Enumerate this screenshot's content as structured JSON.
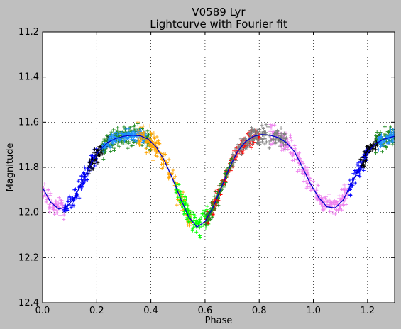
{
  "chart_data": {
    "type": "scatter",
    "title": "V0589 Lyr",
    "subtitle": "Lightcurve with Fourier fit",
    "xlabel": "Phase",
    "ylabel": "Magnitude",
    "xlim": [
      0.0,
      1.3
    ],
    "ylim": [
      12.4,
      11.2
    ],
    "y_inverted": true,
    "grid": true,
    "xticks": [
      "0.0",
      "0.2",
      "0.4",
      "0.6",
      "0.8",
      "1.0",
      "1.2"
    ],
    "yticks": [
      "11.2",
      "11.4",
      "11.6",
      "11.8",
      "12.0",
      "12.2",
      "12.4"
    ],
    "marker": "plus",
    "fit": {
      "name": "Fourier fit",
      "color": "#0000cc",
      "points": [
        [
          0.0,
          11.89
        ],
        [
          0.03,
          11.955
        ],
        [
          0.06,
          11.985
        ],
        [
          0.09,
          11.975
        ],
        [
          0.12,
          11.93
        ],
        [
          0.15,
          11.855
        ],
        [
          0.18,
          11.78
        ],
        [
          0.21,
          11.725
        ],
        [
          0.24,
          11.69
        ],
        [
          0.27,
          11.672
        ],
        [
          0.3,
          11.662
        ],
        [
          0.33,
          11.658
        ],
        [
          0.36,
          11.66
        ],
        [
          0.39,
          11.675
        ],
        [
          0.42,
          11.71
        ],
        [
          0.45,
          11.77
        ],
        [
          0.48,
          11.85
        ],
        [
          0.51,
          11.94
        ],
        [
          0.54,
          12.02
        ],
        [
          0.57,
          12.065
        ],
        [
          0.6,
          12.04
        ],
        [
          0.63,
          11.975
        ],
        [
          0.66,
          11.89
        ],
        [
          0.69,
          11.8
        ],
        [
          0.72,
          11.73
        ],
        [
          0.75,
          11.685
        ],
        [
          0.78,
          11.662
        ],
        [
          0.81,
          11.655
        ],
        [
          0.84,
          11.658
        ],
        [
          0.87,
          11.668
        ],
        [
          0.9,
          11.69
        ],
        [
          0.93,
          11.73
        ],
        [
          0.96,
          11.8
        ],
        [
          0.99,
          11.875
        ],
        [
          1.02,
          11.935
        ],
        [
          1.05,
          11.975
        ],
        [
          1.08,
          11.98
        ],
        [
          1.11,
          11.945
        ],
        [
          1.14,
          11.875
        ],
        [
          1.17,
          11.8
        ],
        [
          1.2,
          11.735
        ],
        [
          1.23,
          11.695
        ],
        [
          1.26,
          11.675
        ],
        [
          1.3,
          11.662
        ]
      ]
    },
    "observation_groups": [
      {
        "color": "#ee82ee",
        "segments": [
          [
            0.0,
            0.08
          ],
          [
            0.84,
            1.13
          ]
        ],
        "scatter": 0.045
      },
      {
        "color": "#0000ff",
        "segments": [
          [
            0.08,
            0.2
          ],
          [
            1.13,
            1.2
          ]
        ],
        "scatter": 0.04
      },
      {
        "color": "#000000",
        "segments": [
          [
            0.17,
            0.25
          ],
          [
            1.17,
            1.25
          ]
        ],
        "scatter": 0.035
      },
      {
        "color": "#228b22",
        "segments": [
          [
            0.22,
            0.4
          ],
          [
            1.23,
            1.3
          ]
        ],
        "scatter": 0.045
      },
      {
        "color": "#1e90ff",
        "segments": [
          [
            0.22,
            0.38
          ],
          [
            1.24,
            1.3
          ]
        ],
        "scatter": 0.03
      },
      {
        "color": "#ffa500",
        "segments": [
          [
            0.35,
            0.55
          ]
        ],
        "scatter": 0.05
      },
      {
        "color": "#00ff00",
        "segments": [
          [
            0.49,
            0.63
          ]
        ],
        "scatter": 0.045
      },
      {
        "color": "#ff0000",
        "segments": [
          [
            0.6,
            0.8
          ]
        ],
        "scatter": 0.035
      },
      {
        "color": "#228b22",
        "segments": [
          [
            0.6,
            0.7
          ]
        ],
        "scatter": 0.035
      },
      {
        "color": "#808080",
        "segments": [
          [
            0.7,
            0.9
          ]
        ],
        "scatter": 0.04
      }
    ]
  }
}
